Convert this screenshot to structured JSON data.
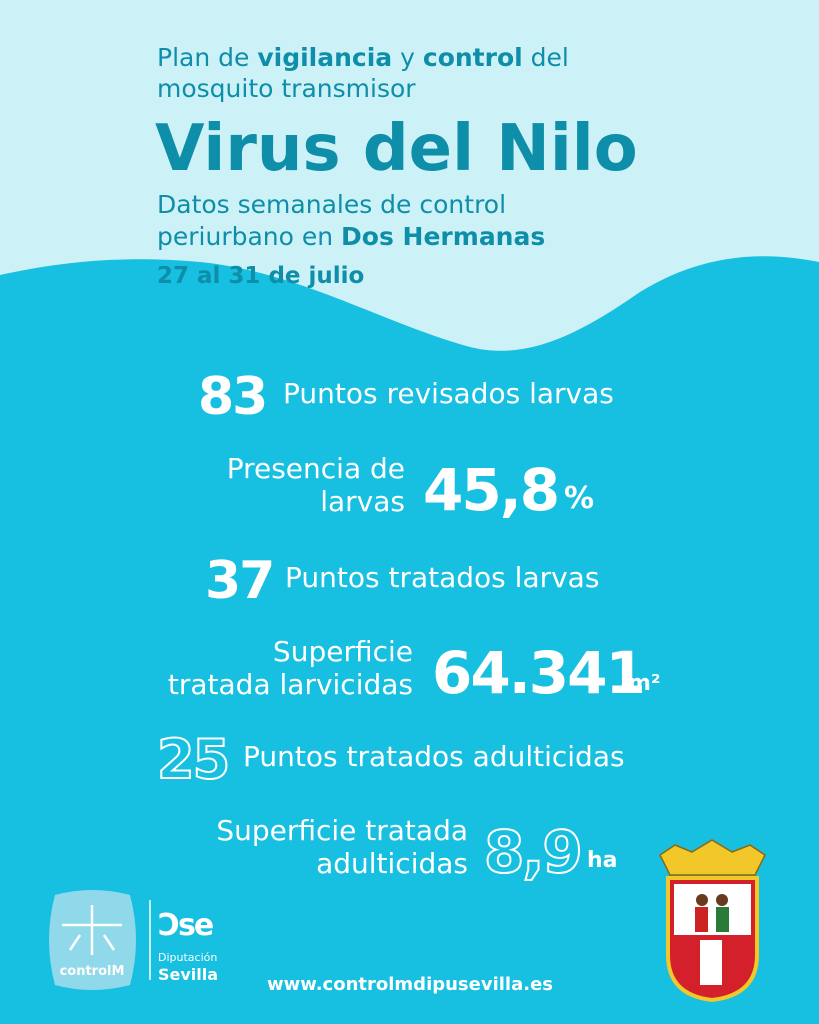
{
  "header": {
    "intro": [
      [
        "Plan de ",
        "vigilancia",
        " y ",
        "control",
        " del"
      ],
      [
        "mosquito transmisor"
      ]
    ],
    "title": "Virus del Nilo",
    "subtitle": [
      [
        "Datos semanales de control"
      ],
      [
        "periurbano en ",
        "Dos Hermanas"
      ]
    ],
    "date": "27 al 31 de julio"
  },
  "stats": [
    {
      "value": "83",
      "label": [
        "Puntos revisados larvas"
      ]
    },
    {
      "label": [
        "Presencia de",
        "larvas"
      ],
      "value": "45,8",
      "unit": "%"
    },
    {
      "value": "37",
      "label": [
        "Puntos tratados larvas"
      ]
    },
    {
      "label": [
        "Superficie",
        "tratada larvicidas"
      ],
      "value": "64.341",
      "unit": "m²"
    },
    {
      "value": "25",
      "label": [
        "Puntos tratados adulticidas"
      ]
    },
    {
      "label": [
        "Superficie tratada",
        "adulticidas"
      ],
      "value": "8,9",
      "unit": "ha"
    }
  ],
  "footer": {
    "logo_controlm": "controlM",
    "logo_diputacion": [
      "Diputación",
      "Sevilla"
    ],
    "url": "www.controlmdipusevilla.es"
  }
}
